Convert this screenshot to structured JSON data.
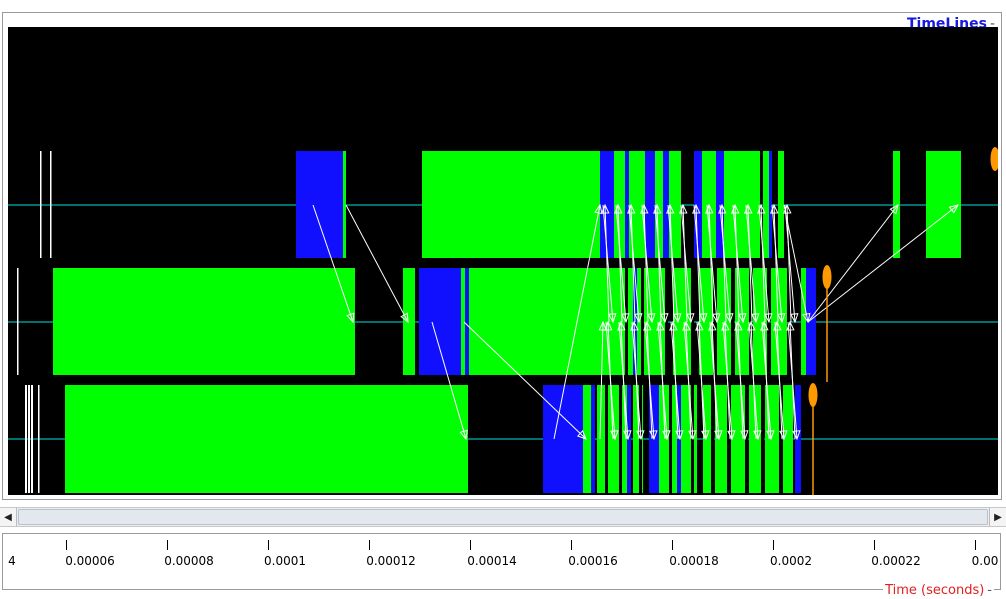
{
  "panel": {
    "title": "TimeLines",
    "title_suffix": "-"
  },
  "ruler": {
    "axis_label": "Time (seconds)",
    "axis_suffix": "-",
    "ticks": [
      {
        "label": "4"
      },
      {
        "label": "0.00006"
      },
      {
        "label": "0.00008"
      },
      {
        "label": "0.0001"
      },
      {
        "label": "0.00012"
      },
      {
        "label": "0.00014"
      },
      {
        "label": "0.00016"
      },
      {
        "label": "0.00018"
      },
      {
        "label": "0.0002"
      },
      {
        "label": "0.00022"
      },
      {
        "label": "0.00"
      }
    ]
  },
  "scrollbar": {
    "left_icon": "arrow-left-icon",
    "right_icon": "arrow-right-icon"
  },
  "timeline": {
    "background": "#000000",
    "line_color": "#00e0e0",
    "colors": {
      "green": "#00ff00",
      "blue": "#1010ff",
      "white": "#ffffff",
      "orange": "#ff9900"
    }
  }
}
